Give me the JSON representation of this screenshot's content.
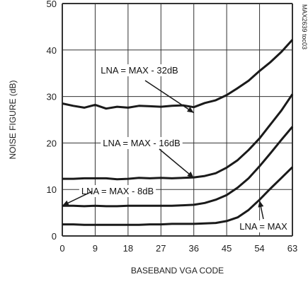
{
  "chart_data": {
    "type": "line",
    "title": "",
    "xlabel": "BASEBAND VGA CODE",
    "ylabel": "NOISE FIGURE (dB)",
    "xlim": [
      0,
      63
    ],
    "ylim": [
      0,
      50
    ],
    "xticks": [
      0,
      9,
      18,
      27,
      36,
      45,
      54,
      63
    ],
    "yticks": [
      0,
      10,
      20,
      30,
      40,
      50
    ],
    "grid": true,
    "x": [
      0,
      3,
      6,
      9,
      12,
      15,
      18,
      21,
      24,
      27,
      30,
      33,
      36,
      39,
      42,
      45,
      48,
      51,
      54,
      57,
      60,
      63
    ],
    "series": [
      {
        "name": "LNA = MAX - 32dB",
        "values": [
          28.5,
          28.0,
          27.6,
          28.2,
          27.4,
          27.8,
          27.6,
          28.0,
          27.9,
          27.8,
          28.0,
          28.1,
          27.7,
          28.6,
          29.2,
          30.3,
          31.8,
          33.4,
          35.5,
          37.4,
          39.6,
          42.2
        ]
      },
      {
        "name": "LNA = MAX - 16dB",
        "values": [
          12.3,
          12.3,
          12.4,
          12.4,
          12.4,
          12.2,
          12.3,
          12.5,
          12.4,
          12.5,
          12.4,
          12.5,
          12.6,
          12.9,
          13.5,
          14.7,
          16.3,
          18.5,
          21.0,
          24.0,
          27.0,
          30.5
        ]
      },
      {
        "name": "LNA = MAX - 8dB",
        "values": [
          6.5,
          6.5,
          6.4,
          6.5,
          6.4,
          6.4,
          6.5,
          6.5,
          6.5,
          6.5,
          6.5,
          6.6,
          6.7,
          7.1,
          7.8,
          8.8,
          10.4,
          12.4,
          15.0,
          17.8,
          20.7,
          23.5
        ]
      },
      {
        "name": "LNA = MAX",
        "values": [
          2.5,
          2.5,
          2.4,
          2.4,
          2.4,
          2.4,
          2.4,
          2.4,
          2.5,
          2.5,
          2.6,
          2.6,
          2.6,
          2.7,
          2.8,
          3.2,
          4.0,
          5.6,
          7.8,
          10.2,
          12.5,
          14.8
        ]
      }
    ],
    "annotations": [
      {
        "text": "LNA = MAX - 32dB",
        "series": 0,
        "arrow_to": [
          36,
          26.5
        ]
      },
      {
        "text": "LNA = MAX - 16dB",
        "series": 1,
        "arrow_to": [
          36,
          12.5
        ]
      },
      {
        "text": "LNA = MAX - 8dB",
        "series": 2,
        "arrow_to": [
          0,
          6.5
        ]
      },
      {
        "text": "LNA = MAX",
        "series": 3,
        "arrow_to": [
          54,
          7.6
        ]
      }
    ],
    "side_label": "MAX2639 toc03"
  },
  "style": {
    "line_color": "#1a1a1a",
    "grid_color": "#333333"
  }
}
